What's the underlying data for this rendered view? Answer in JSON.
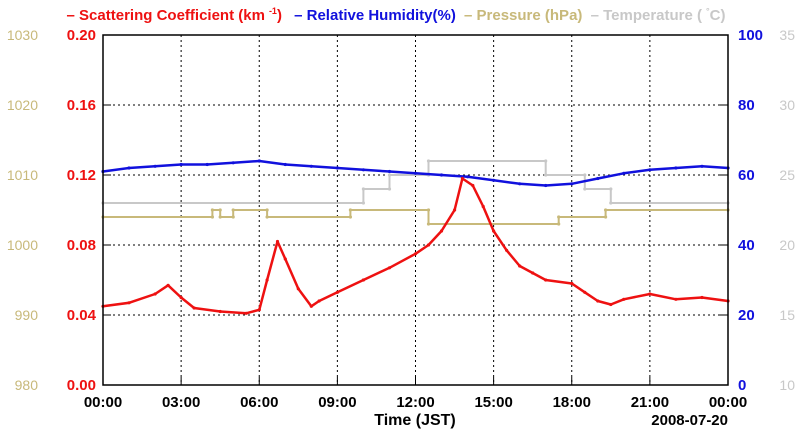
{
  "legend": {
    "scattering": "– Scattering Coefficient (km",
    "scattering_sup": "-1",
    "scattering_tail": ")",
    "humidity": "– Relative Humidity(%)",
    "pressure": "– Pressure (hPa)",
    "temperature": "– Temperature (",
    "temperature_deg": "°",
    "temperature_tail": "C)"
  },
  "colors": {
    "scattering": "#ee1111",
    "humidity": "#1111dd",
    "pressure": "#c8b97a",
    "temperature": "#c8c8c8",
    "grid": "#000000"
  },
  "chart_data": {
    "type": "line",
    "title": "",
    "xlabel": "Time (JST)",
    "date_label": "2008-07-20",
    "x_range": [
      0,
      24
    ],
    "x_ticks": [
      "00:00",
      "03:00",
      "06:00",
      "09:00",
      "12:00",
      "15:00",
      "18:00",
      "21:00",
      "00:00"
    ],
    "axes": {
      "scattering": {
        "side": "left-inner",
        "range": [
          0,
          0.2
        ],
        "ticks": [
          "0.00",
          "0.04",
          "0.08",
          "0.12",
          "0.16",
          "0.20"
        ]
      },
      "pressure": {
        "side": "left-outer",
        "range": [
          980,
          1030
        ],
        "ticks": [
          "980",
          "990",
          "1000",
          "1010",
          "1020",
          "1030"
        ]
      },
      "humidity": {
        "side": "right-inner",
        "range": [
          0,
          100
        ],
        "ticks": [
          "0",
          "20",
          "40",
          "60",
          "80",
          "100"
        ]
      },
      "temperature": {
        "side": "right-outer",
        "range": [
          10,
          35
        ],
        "ticks": [
          "10",
          "15",
          "20",
          "25",
          "30",
          "35"
        ]
      }
    },
    "series": [
      {
        "name": "Scattering Coefficient (km-1)",
        "axis": "scattering",
        "x": [
          0,
          1,
          2,
          2.5,
          3,
          3.5,
          4.5,
          5.5,
          6,
          6.3,
          6.7,
          7,
          7.5,
          8,
          8.3,
          9,
          10,
          11,
          12,
          12.5,
          13,
          13.5,
          13.8,
          14.2,
          14.6,
          15,
          15.5,
          16,
          16.5,
          17,
          18,
          18.5,
          19,
          19.5,
          20,
          21,
          22,
          23,
          24
        ],
        "values": [
          0.045,
          0.047,
          0.052,
          0.057,
          0.05,
          0.044,
          0.042,
          0.041,
          0.043,
          0.06,
          0.082,
          0.072,
          0.055,
          0.045,
          0.048,
          0.053,
          0.06,
          0.067,
          0.075,
          0.08,
          0.088,
          0.1,
          0.118,
          0.114,
          0.102,
          0.088,
          0.077,
          0.068,
          0.064,
          0.06,
          0.058,
          0.053,
          0.048,
          0.046,
          0.049,
          0.052,
          0.049,
          0.05,
          0.048
        ]
      },
      {
        "name": "Relative Humidity(%)",
        "axis": "humidity",
        "x": [
          0,
          1,
          2,
          3,
          4,
          5,
          6,
          7,
          8,
          9,
          10,
          11,
          12,
          13,
          14,
          15,
          16,
          17,
          18,
          19,
          20,
          21,
          22,
          23,
          24
        ],
        "values": [
          61,
          62,
          62.5,
          63,
          63,
          63.5,
          64,
          63,
          62.5,
          62,
          61.5,
          61,
          60.5,
          60,
          59.5,
          58.5,
          57.5,
          57,
          57.5,
          59,
          60.5,
          61.5,
          62,
          62.5,
          62
        ]
      },
      {
        "name": "Pressure (hPa)",
        "axis": "pressure",
        "x": [
          0,
          4.2,
          4.2,
          4.5,
          4.5,
          5,
          5,
          6.3,
          6.3,
          9.5,
          9.5,
          12.5,
          12.5,
          17.5,
          17.5,
          19.3,
          19.3,
          24
        ],
        "values": [
          1004,
          1004,
          1005,
          1005,
          1004,
          1004,
          1005,
          1005,
          1004,
          1004,
          1005,
          1005,
          1003,
          1003,
          1004,
          1004,
          1005,
          1005
        ]
      },
      {
        "name": "Temperature (°C)",
        "axis": "temperature",
        "x": [
          0,
          10,
          10,
          11,
          11,
          12.5,
          12.5,
          17,
          17,
          18.5,
          18.5,
          19.5,
          19.5,
          24
        ],
        "values": [
          23,
          23,
          24,
          24,
          25,
          25,
          26,
          26,
          25,
          25,
          24,
          24,
          23,
          23
        ]
      }
    ]
  }
}
